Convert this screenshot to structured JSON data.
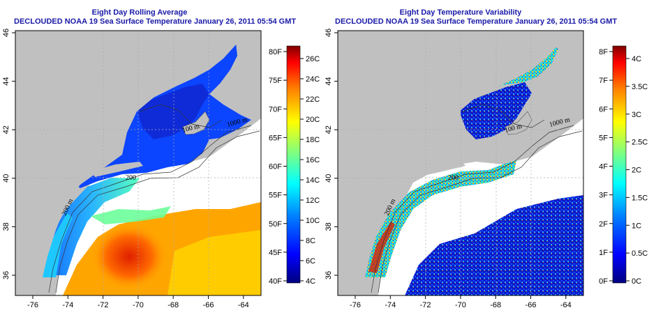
{
  "left_panel": {
    "title": "Eight Day Rolling Average",
    "subtitle": "DECLOUDED NOAA 19 Sea Surface Temperature January 26, 2011 05:54 GMT",
    "colorbar_f": [
      "80F",
      "75F",
      "70F",
      "65F",
      "60F",
      "55F",
      "50F",
      "45F",
      "40F"
    ],
    "colorbar_c": [
      "26C",
      "24C",
      "22C",
      "20C",
      "18C",
      "16C",
      "14C",
      "12C",
      "10C",
      "8C",
      "6C",
      "4C"
    ]
  },
  "right_panel": {
    "title": "Eight Day Temperature Variability",
    "subtitle": "DECLOUDED NOAA 19 Sea Surface Temperature January 26, 2011 05:54 GMT",
    "colorbar_f": [
      "8F",
      "7F",
      "6F",
      "5F",
      "4F",
      "3F",
      "2F",
      "1F",
      "0F"
    ],
    "colorbar_c": [
      "4C",
      "3.5C",
      "3C",
      "2.5C",
      "2C",
      "1.5C",
      "1C",
      "0.5C",
      "0C"
    ]
  },
  "x_ticks": [
    "-76",
    "-74",
    "-72",
    "-70",
    "-68",
    "-66",
    "-64"
  ],
  "y_ticks": [
    "46",
    "44",
    "42",
    "40",
    "38",
    "36"
  ],
  "contour_labels": [
    "100 m",
    "1000 m",
    "200",
    "200 m"
  ],
  "colors": {
    "land": "#c0c0c0",
    "title": "#1a1aa8",
    "sst_scale": [
      "#00007f",
      "#0000ff",
      "#007fff",
      "#00ffff",
      "#7fff7f",
      "#ffff00",
      "#ff7f00",
      "#ff0000",
      "#7f0000"
    ]
  }
}
